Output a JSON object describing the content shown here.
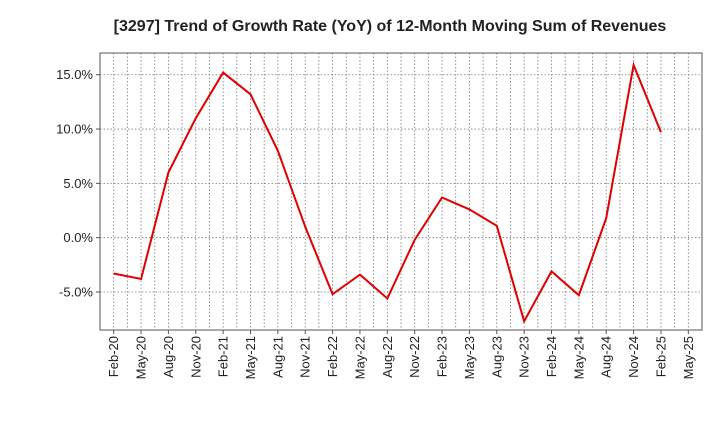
{
  "chart_data": {
    "type": "line",
    "title": "[3297]  Trend of Growth Rate (YoY) of 12-Month Moving Sum of Revenues",
    "xlabel": "",
    "ylabel": "",
    "x_tick_labels": [
      "Feb-20",
      "May-20",
      "Aug-20",
      "Nov-20",
      "Feb-21",
      "May-21",
      "Aug-21",
      "Nov-21",
      "Feb-22",
      "May-22",
      "Aug-22",
      "Nov-22",
      "Feb-23",
      "May-23",
      "Aug-23",
      "Nov-23",
      "Feb-24",
      "May-24",
      "Aug-24",
      "Nov-24",
      "Feb-25",
      "May-25"
    ],
    "y_ticks": [
      -5.0,
      0.0,
      5.0,
      10.0,
      15.0
    ],
    "y_tick_labels": [
      "-5.0%",
      "0.0%",
      "5.0%",
      "10.0%",
      "15.0%"
    ],
    "ylim": [
      -8.5,
      17.0
    ],
    "grid": true,
    "series": [
      {
        "name": "",
        "color": "#e00000",
        "x": [
          "Feb-20",
          "May-20",
          "Aug-20",
          "Nov-20",
          "Feb-21",
          "May-21",
          "Aug-21",
          "Nov-21",
          "Feb-22",
          "May-22",
          "Aug-22",
          "Nov-22",
          "Feb-23",
          "May-23",
          "Aug-23",
          "Nov-23",
          "Feb-24",
          "May-24",
          "Aug-24",
          "Nov-24",
          "Feb-25"
        ],
        "values": [
          -3.3,
          -3.8,
          6.0,
          11.0,
          15.2,
          13.2,
          8.0,
          1.0,
          -5.2,
          -3.4,
          -5.6,
          -0.2,
          3.7,
          2.6,
          1.1,
          -7.7,
          -3.1,
          -5.3,
          1.8,
          15.9,
          9.7
        ]
      }
    ]
  }
}
